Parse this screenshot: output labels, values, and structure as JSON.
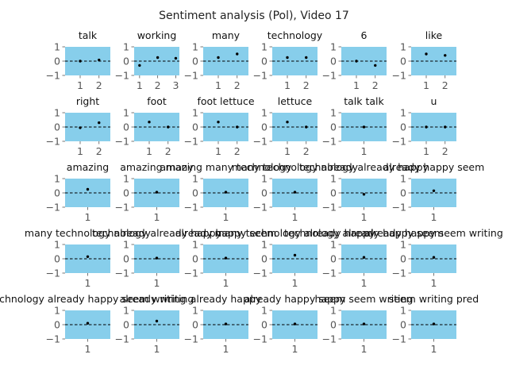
{
  "chart_data": {
    "title": "Sentiment analysis (Pol), Video 17",
    "type": "scatter",
    "grid_rows": 5,
    "grid_cols": 6,
    "ylim": [
      -1,
      1
    ],
    "yticks": [
      "1",
      "0",
      "−1"
    ],
    "panel_color": "#87ceeb",
    "marker_color": "#000000",
    "baseline": {
      "y": 0,
      "style": "dashed",
      "color": "#000000"
    },
    "panels": [
      {
        "title": "talk",
        "xticks": [
          "1",
          "2"
        ],
        "x": [
          1,
          2
        ],
        "y": [
          0.0,
          0.08
        ],
        "xlim": [
          0.2,
          2.6
        ]
      },
      {
        "title": "working",
        "xticks": [
          "1",
          "2",
          "3"
        ],
        "x": [
          1,
          2,
          3
        ],
        "y": [
          -0.3,
          0.25,
          0.2
        ],
        "xlim": [
          0.7,
          3.2
        ]
      },
      {
        "title": "many",
        "xticks": [
          "1",
          "2"
        ],
        "x": [
          1,
          2
        ],
        "y": [
          0.25,
          0.5
        ],
        "xlim": [
          0.2,
          2.6
        ]
      },
      {
        "title": "technology",
        "xticks": [
          "1",
          "2"
        ],
        "x": [
          1,
          2
        ],
        "y": [
          0.25,
          0.25
        ],
        "xlim": [
          0.2,
          2.6
        ]
      },
      {
        "title": "6",
        "xticks": [
          "1",
          "2"
        ],
        "x": [
          1,
          2
        ],
        "y": [
          0.0,
          -0.3
        ],
        "xlim": [
          0.2,
          2.6
        ]
      },
      {
        "title": "like",
        "xticks": [
          "1",
          "2"
        ],
        "x": [
          1,
          2
        ],
        "y": [
          0.5,
          0.4
        ],
        "xlim": [
          0.2,
          2.6
        ]
      },
      {
        "title": "right",
        "xticks": [
          "1",
          "2"
        ],
        "x": [
          1,
          2
        ],
        "y": [
          -0.05,
          0.3
        ],
        "xlim": [
          0.2,
          2.6
        ]
      },
      {
        "title": "foot",
        "xticks": [
          "1",
          "2"
        ],
        "x": [
          1,
          2
        ],
        "y": [
          0.35,
          0.0
        ],
        "xlim": [
          0.2,
          2.6
        ]
      },
      {
        "title": "foot lettuce",
        "xticks": [
          "1",
          "2"
        ],
        "x": [
          1,
          2
        ],
        "y": [
          0.35,
          0.0
        ],
        "xlim": [
          0.2,
          2.6
        ]
      },
      {
        "title": "lettuce",
        "xticks": [
          "1",
          "2"
        ],
        "x": [
          1,
          2
        ],
        "y": [
          0.35,
          0.0
        ],
        "xlim": [
          0.2,
          2.6
        ]
      },
      {
        "title": "talk talk",
        "xticks": [
          "1"
        ],
        "x": [
          1
        ],
        "y": [
          0.0
        ],
        "xlim": [
          0.0,
          2.0
        ]
      },
      {
        "title": "u",
        "xticks": [
          "1",
          "2"
        ],
        "x": [
          1,
          2
        ],
        "y": [
          0.0,
          0.0
        ],
        "xlim": [
          0.2,
          2.6
        ]
      },
      {
        "title": "amazing",
        "xticks": [
          "1"
        ],
        "x": [
          1
        ],
        "y": [
          0.25
        ],
        "xlim": [
          0.0,
          2.0
        ]
      },
      {
        "title": "amazing many",
        "xticks": [
          "1"
        ],
        "x": [
          1
        ],
        "y": [
          0.05
        ],
        "xlim": [
          0.0,
          2.0
        ]
      },
      {
        "title": "amazing many technology",
        "xticks": [
          "1"
        ],
        "x": [
          1
        ],
        "y": [
          0.05
        ],
        "xlim": [
          0.0,
          2.0
        ]
      },
      {
        "title": "many technology already",
        "xticks": [
          "1"
        ],
        "x": [
          1
        ],
        "y": [
          0.05
        ],
        "xlim": [
          0.0,
          2.0
        ]
      },
      {
        "title": "technology already happy",
        "xticks": [
          "1"
        ],
        "x": [
          1
        ],
        "y": [
          -0.1
        ],
        "xlim": [
          0.0,
          2.0
        ]
      },
      {
        "title": "already happy seem",
        "xticks": [
          "1"
        ],
        "x": [
          1
        ],
        "y": [
          0.15
        ],
        "xlim": [
          0.0,
          2.0
        ]
      },
      {
        "title": "many technology already",
        "xticks": [
          "1"
        ],
        "x": [
          1
        ],
        "y": [
          0.15
        ],
        "xlim": [
          0.0,
          2.0
        ]
      },
      {
        "title": "technology already happy",
        "xticks": [
          "1"
        ],
        "x": [
          1
        ],
        "y": [
          0.05
        ],
        "xlim": [
          0.0,
          2.0
        ]
      },
      {
        "title": "already happy seem",
        "xticks": [
          "1"
        ],
        "x": [
          1
        ],
        "y": [
          0.05
        ],
        "xlim": [
          0.0,
          2.0
        ]
      },
      {
        "title": "many technology already happy",
        "xticks": [
          "1"
        ],
        "x": [
          1
        ],
        "y": [
          0.25
        ],
        "xlim": [
          0.0,
          2.0
        ]
      },
      {
        "title": "technology already happy seem",
        "xticks": [
          "1"
        ],
        "x": [
          1
        ],
        "y": [
          0.1
        ],
        "xlim": [
          0.0,
          2.0
        ]
      },
      {
        "title": "already happy seem writing",
        "xticks": [
          "1"
        ],
        "x": [
          1
        ],
        "y": [
          0.1
        ],
        "xlim": [
          0.0,
          2.0
        ]
      },
      {
        "title": "technology already happy seem writing",
        "xticks": [
          "1"
        ],
        "x": [
          1
        ],
        "y": [
          0.1
        ],
        "xlim": [
          0.0,
          2.0
        ]
      },
      {
        "title": "already writing",
        "xticks": [
          "1"
        ],
        "x": [
          1
        ],
        "y": [
          0.25
        ],
        "xlim": [
          0.0,
          2.0
        ]
      },
      {
        "title": "already happy",
        "xticks": [
          "1"
        ],
        "x": [
          1
        ],
        "y": [
          0.05
        ],
        "xlim": [
          0.0,
          2.0
        ]
      },
      {
        "title": "already happy seem",
        "xticks": [
          "1"
        ],
        "x": [
          1
        ],
        "y": [
          0.05
        ],
        "xlim": [
          0.0,
          2.0
        ]
      },
      {
        "title": "happy seem writing",
        "xticks": [
          "1"
        ],
        "x": [
          1
        ],
        "y": [
          0.05
        ],
        "xlim": [
          0.0,
          2.0
        ]
      },
      {
        "title": "seem writing pred",
        "xticks": [
          "1"
        ],
        "x": [
          1
        ],
        "y": [
          0.05
        ],
        "xlim": [
          0.0,
          2.0
        ]
      }
    ]
  }
}
